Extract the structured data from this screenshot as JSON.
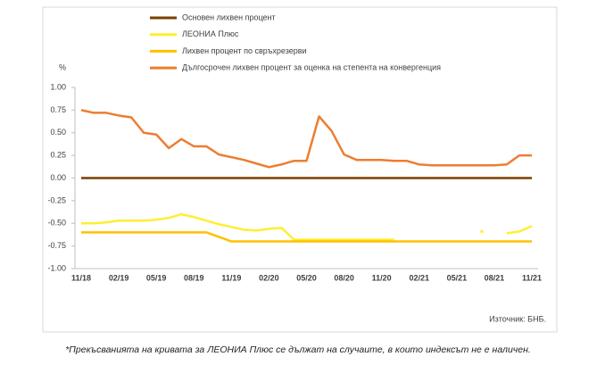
{
  "chart_data": {
    "type": "line",
    "y_label": "%",
    "source": "Източник: БНБ.",
    "footnote": "*Прекъсванията на кривата за ЛЕОНИА Плюс се дължат на случаите, в които индексът не е наличен.",
    "categories": [
      "11/18",
      null,
      null,
      "02/19",
      null,
      null,
      "05/19",
      null,
      null,
      "08/19",
      null,
      null,
      "11/19",
      null,
      null,
      "02/20",
      null,
      null,
      "05/20",
      null,
      null,
      "08/20",
      null,
      null,
      "11/20",
      null,
      null,
      "02/21",
      null,
      null,
      "05/21",
      null,
      null,
      "08/21",
      null,
      null,
      "11/21"
    ],
    "ylim": [
      -1,
      1
    ],
    "yticks": [
      {
        "value": 1,
        "label": "1.00"
      },
      {
        "value": 0.75,
        "label": "0.75"
      },
      {
        "value": 0.5,
        "label": "0.50"
      },
      {
        "value": 0.25,
        "label": "0.25"
      },
      {
        "value": 0,
        "label": "0.00"
      },
      {
        "value": -0.25,
        "label": "-0.25"
      },
      {
        "value": -0.5,
        "label": "-0.50"
      },
      {
        "value": -0.75,
        "label": "-0.75"
      },
      {
        "value": -1,
        "label": "-1.00"
      }
    ],
    "series": [
      {
        "name": "Основен лихвен процент",
        "color": "#7b3f00",
        "values": [
          0,
          0,
          0,
          0,
          0,
          0,
          0,
          0,
          0,
          0,
          0,
          0,
          0,
          0,
          0,
          0,
          0,
          0,
          0,
          0,
          0,
          0,
          0,
          0,
          0,
          0,
          0,
          0,
          0,
          0,
          0,
          0,
          0,
          0,
          0,
          0,
          0
        ]
      },
      {
        "name": "ЛЕОНИА Плюс",
        "color": "#ffee33",
        "values": [
          -0.5,
          -0.5,
          -0.49,
          -0.47,
          -0.47,
          -0.47,
          -0.46,
          -0.44,
          -0.4,
          -0.43,
          -0.47,
          -0.51,
          -0.54,
          -0.57,
          -0.58,
          -0.56,
          -0.55,
          -0.68,
          -0.68,
          -0.68,
          -0.68,
          -0.68,
          -0.68,
          -0.68,
          -0.68,
          -0.68,
          null,
          null,
          null,
          null,
          null,
          null,
          -0.59,
          null,
          -0.61,
          -0.59,
          -0.53
        ]
      },
      {
        "name": "Лихвен процент по свръхрезерви",
        "color": "#ffc000",
        "values": [
          -0.6,
          -0.6,
          -0.6,
          -0.6,
          -0.6,
          -0.6,
          -0.6,
          -0.6,
          -0.6,
          -0.6,
          -0.6,
          -0.65,
          -0.7,
          -0.7,
          -0.7,
          -0.7,
          -0.7,
          -0.7,
          -0.7,
          -0.7,
          -0.7,
          -0.7,
          -0.7,
          -0.7,
          -0.7,
          -0.7,
          -0.7,
          -0.7,
          -0.7,
          -0.7,
          -0.7,
          -0.7,
          -0.7,
          -0.7,
          -0.7,
          -0.7,
          -0.7
        ]
      },
      {
        "name": "Дългосрочен лихвен процент за оценка на степента на конвергенция",
        "color": "#ed7d31",
        "values": [
          0.75,
          0.72,
          0.72,
          0.69,
          0.67,
          0.5,
          0.48,
          0.33,
          0.43,
          0.35,
          0.35,
          0.26,
          0.23,
          0.2,
          0.16,
          0.12,
          0.15,
          0.19,
          0.19,
          0.68,
          0.52,
          0.26,
          0.2,
          0.2,
          0.2,
          0.19,
          0.19,
          0.15,
          0.14,
          0.14,
          0.14,
          0.14,
          0.14,
          0.14,
          0.15,
          0.25,
          0.25
        ]
      }
    ]
  }
}
